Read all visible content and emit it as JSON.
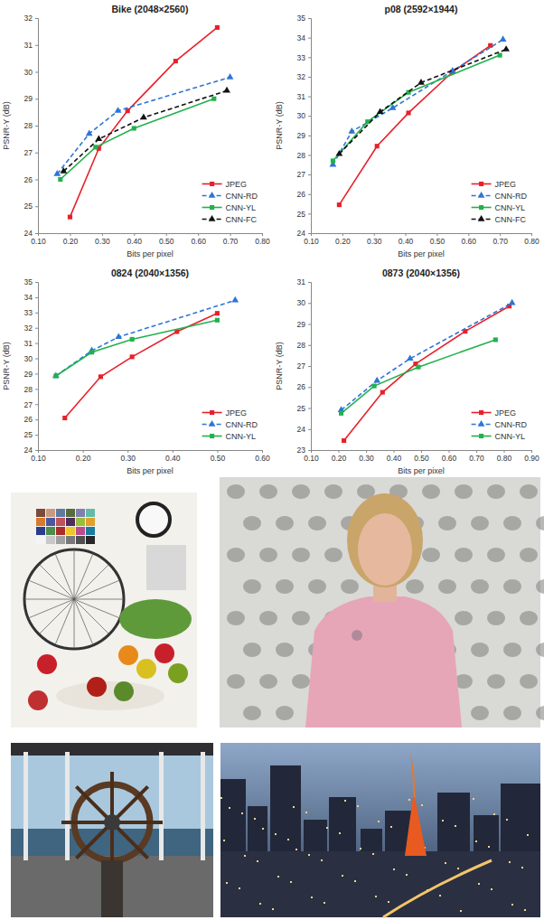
{
  "chart_data": [
    {
      "type": "line",
      "title": "Bike (2048×2560)",
      "x_label": "Bits per pixel",
      "y_label": "PSNR-Y (dB)",
      "xlim": [
        0.1,
        0.8
      ],
      "xticks": [
        {
          "value": 0.1,
          "label": "0.10"
        },
        {
          "value": 0.2,
          "label": "0.20"
        },
        {
          "value": 0.3,
          "label": "0.30"
        },
        {
          "value": 0.4,
          "label": "0.40"
        },
        {
          "value": 0.5,
          "label": "0.50"
        },
        {
          "value": 0.6,
          "label": "0.60"
        },
        {
          "value": 0.7,
          "label": "0.70"
        },
        {
          "value": 0.8,
          "label": "0.80"
        }
      ],
      "ylim": [
        24,
        32
      ],
      "yticks": [
        24,
        25,
        26,
        27,
        28,
        29,
        30,
        31,
        32
      ],
      "grid": false,
      "legend": "lower right",
      "series": [
        {
          "name": "JPEG",
          "color": "#e8202a",
          "marker": "square",
          "line_style": "solid",
          "x": [
            0.2,
            0.29,
            0.38,
            0.53,
            0.66
          ],
          "values": [
            24.6,
            27.15,
            28.55,
            30.4,
            31.65
          ]
        },
        {
          "name": "CNN-RD",
          "color": "#2e75d6",
          "marker": "triangle",
          "line_style": "dashed",
          "x": [
            0.16,
            0.26,
            0.35,
            0.7
          ],
          "values": [
            26.2,
            27.7,
            28.55,
            29.8
          ]
        },
        {
          "name": "CNN-YL",
          "color": "#22b14c",
          "marker": "square",
          "line_style": "solid",
          "x": [
            0.17,
            0.28,
            0.4,
            0.65
          ],
          "values": [
            26.0,
            27.2,
            27.9,
            29.0
          ]
        },
        {
          "name": "CNN-FC",
          "color": "#111111",
          "marker": "triangle",
          "line_style": "dashed",
          "x": [
            0.18,
            0.29,
            0.43,
            0.69
          ],
          "values": [
            26.3,
            27.5,
            28.3,
            29.3
          ]
        }
      ]
    },
    {
      "type": "line",
      "title": "p08 (2592×1944)",
      "x_label": "Bits per pixel",
      "y_label": "PSNR-Y (dB)",
      "xlim": [
        0.1,
        0.8
      ],
      "xticks": [
        {
          "value": 0.1,
          "label": "0.10"
        },
        {
          "value": 0.2,
          "label": "0.20"
        },
        {
          "value": 0.3,
          "label": "0.30"
        },
        {
          "value": 0.4,
          "label": "0.40"
        },
        {
          "value": 0.5,
          "label": "0.50"
        },
        {
          "value": 0.6,
          "label": "0.60"
        },
        {
          "value": 0.7,
          "label": "0.70"
        },
        {
          "value": 0.8,
          "label": "0.80"
        }
      ],
      "ylim": [
        24,
        35
      ],
      "yticks": [
        24,
        25,
        26,
        27,
        28,
        29,
        30,
        31,
        32,
        33,
        34,
        35
      ],
      "grid": false,
      "legend": "lower right",
      "series": [
        {
          "name": "JPEG",
          "color": "#e8202a",
          "marker": "square",
          "line_style": "solid",
          "x": [
            0.19,
            0.31,
            0.41,
            0.55,
            0.67
          ],
          "values": [
            25.45,
            28.45,
            30.15,
            32.25,
            33.6
          ]
        },
        {
          "name": "CNN-RD",
          "color": "#2e75d6",
          "marker": "triangle",
          "line_style": "dashed",
          "x": [
            0.17,
            0.23,
            0.36,
            0.55,
            0.71
          ],
          "values": [
            27.5,
            29.2,
            30.4,
            32.3,
            33.9
          ]
        },
        {
          "name": "CNN-YL",
          "color": "#22b14c",
          "marker": "square",
          "line_style": "solid",
          "x": [
            0.17,
            0.28,
            0.41,
            0.7
          ],
          "values": [
            27.7,
            29.7,
            31.2,
            33.1
          ]
        },
        {
          "name": "CNN-FC",
          "color": "#111111",
          "marker": "triangle",
          "line_style": "dashed",
          "x": [
            0.19,
            0.32,
            0.45,
            0.72
          ],
          "values": [
            28.05,
            30.2,
            31.7,
            33.4
          ]
        }
      ]
    },
    {
      "type": "line",
      "title": "0824 (2040×1356)",
      "x_label": "Bits per pixel",
      "y_label": "PSNR-Y (dB)",
      "xlim": [
        0.1,
        0.6
      ],
      "xticks": [
        {
          "value": 0.1,
          "label": "0.10"
        },
        {
          "value": 0.2,
          "label": "0.20"
        },
        {
          "value": 0.3,
          "label": "0.30"
        },
        {
          "value": 0.4,
          "label": "0.40"
        },
        {
          "value": 0.5,
          "label": "0.50"
        },
        {
          "value": 0.6,
          "label": "0.60"
        }
      ],
      "ylim": [
        24,
        35
      ],
      "yticks": [
        24,
        25,
        26,
        27,
        28,
        29,
        30,
        31,
        32,
        33,
        34,
        35
      ],
      "grid": false,
      "legend": "lower right",
      "series": [
        {
          "name": "JPEG",
          "color": "#e8202a",
          "marker": "square",
          "line_style": "solid",
          "x": [
            0.16,
            0.24,
            0.31,
            0.41,
            0.5
          ],
          "values": [
            26.1,
            28.8,
            30.1,
            31.75,
            32.95
          ]
        },
        {
          "name": "CNN-RD",
          "color": "#2e75d6",
          "marker": "triangle",
          "line_style": "dashed",
          "x": [
            0.14,
            0.22,
            0.28,
            0.54
          ],
          "values": [
            28.85,
            30.5,
            31.4,
            33.8
          ]
        },
        {
          "name": "CNN-YL",
          "color": "#22b14c",
          "marker": "square",
          "line_style": "solid",
          "x": [
            0.14,
            0.22,
            0.31,
            0.5
          ],
          "values": [
            28.85,
            30.4,
            31.25,
            32.5
          ]
        }
      ]
    },
    {
      "type": "line",
      "title": "0873 (2040×1356)",
      "x_label": "Bits per pixel",
      "y_label": "PSNR-Y (dB)",
      "xlim": [
        0.1,
        0.9
      ],
      "xticks": [
        {
          "value": 0.1,
          "label": "0.10"
        },
        {
          "value": 0.2,
          "label": "0.20"
        },
        {
          "value": 0.3,
          "label": "0.30"
        },
        {
          "value": 0.4,
          "label": "0.40"
        },
        {
          "value": 0.5,
          "label": "0.50"
        },
        {
          "value": 0.6,
          "label": "0.60"
        },
        {
          "value": 0.7,
          "label": "0.70"
        },
        {
          "value": 0.8,
          "label": "0.80"
        },
        {
          "value": 0.9,
          "label": "0.90"
        }
      ],
      "ylim": [
        23,
        31
      ],
      "yticks": [
        23,
        24,
        25,
        26,
        27,
        28,
        29,
        30,
        31
      ],
      "grid": false,
      "legend": "lower right",
      "series": [
        {
          "name": "JPEG",
          "color": "#e8202a",
          "marker": "square",
          "line_style": "solid",
          "x": [
            0.22,
            0.36,
            0.48,
            0.66,
            0.82
          ],
          "values": [
            23.45,
            25.75,
            27.1,
            28.65,
            29.85
          ]
        },
        {
          "name": "CNN-RD",
          "color": "#2e75d6",
          "marker": "triangle",
          "line_style": "dashed",
          "x": [
            0.21,
            0.34,
            0.46,
            0.83
          ],
          "values": [
            24.9,
            26.3,
            27.35,
            30.0
          ]
        },
        {
          "name": "CNN-YL",
          "color": "#22b14c",
          "marker": "square",
          "line_style": "solid",
          "x": [
            0.21,
            0.33,
            0.49,
            0.77
          ],
          "values": [
            24.75,
            26.05,
            26.95,
            28.25
          ]
        }
      ]
    }
  ]
}
